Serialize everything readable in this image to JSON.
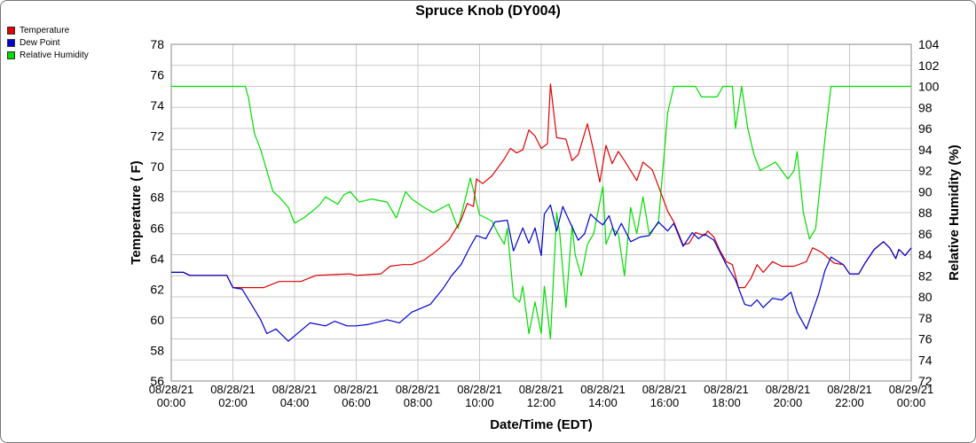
{
  "chart_data": {
    "type": "line",
    "title": "Spruce Knob (DY004)",
    "xlabel": "Date/Time (EDT)",
    "ylabel_left": "Temperature ( F)",
    "ylabel_right": "Relative Humidity (%)",
    "xlim_hours": [
      0,
      24
    ],
    "ylim_left": [
      56,
      78
    ],
    "ylim_right": [
      72,
      104
    ],
    "grid": true,
    "legend_position": "top-left",
    "x_ticks": [
      {
        "date": "08/28/21",
        "time": "00:00"
      },
      {
        "date": "08/28/21",
        "time": "02:00"
      },
      {
        "date": "08/28/21",
        "time": "04:00"
      },
      {
        "date": "08/28/21",
        "time": "06:00"
      },
      {
        "date": "08/28/21",
        "time": "08:00"
      },
      {
        "date": "08/28/21",
        "time": "10:00"
      },
      {
        "date": "08/28/21",
        "time": "12:00"
      },
      {
        "date": "08/28/21",
        "time": "14:00"
      },
      {
        "date": "08/28/21",
        "time": "16:00"
      },
      {
        "date": "08/28/21",
        "time": "18:00"
      },
      {
        "date": "08/28/21",
        "time": "20:00"
      },
      {
        "date": "08/28/21",
        "time": "22:00"
      },
      {
        "date": "08/29/21",
        "time": "00:00"
      }
    ],
    "y_ticks_left": [
      56,
      58,
      60,
      62,
      64,
      66,
      68,
      70,
      72,
      74,
      76,
      78
    ],
    "y_ticks_right": [
      72,
      74,
      76,
      78,
      80,
      82,
      84,
      86,
      88,
      90,
      92,
      94,
      96,
      98,
      100,
      102,
      104
    ],
    "series": [
      {
        "name": "Temperature",
        "color": "#e00000",
        "axis": "left",
        "points": [
          [
            "08/28/21 00:00",
            63.1
          ],
          [
            "08/28/21 00:24",
            63.1
          ],
          [
            "08/28/21 00:36",
            62.9
          ],
          [
            "08/28/21 01:48",
            62.9
          ],
          [
            "08/28/21 02:00",
            62.1
          ],
          [
            "08/28/21 03:00",
            62.1
          ],
          [
            "08/28/21 03:30",
            62.5
          ],
          [
            "08/28/21 04:12",
            62.5
          ],
          [
            "08/28/21 04:42",
            62.9
          ],
          [
            "08/28/21 05:48",
            63.0
          ],
          [
            "08/28/21 06:00",
            62.9
          ],
          [
            "08/28/21 06:48",
            63.0
          ],
          [
            "08/28/21 07:06",
            63.5
          ],
          [
            "08/28/21 07:30",
            63.6
          ],
          [
            "08/28/21 07:48",
            63.6
          ],
          [
            "08/28/21 08:12",
            63.9
          ],
          [
            "08/28/21 08:36",
            64.5
          ],
          [
            "08/28/21 09:00",
            65.2
          ],
          [
            "08/28/21 09:24",
            66.5
          ],
          [
            "08/28/21 09:36",
            67.6
          ],
          [
            "08/28/21 09:48",
            67.4
          ],
          [
            "08/28/21 09:54",
            69.2
          ],
          [
            "08/28/21 10:06",
            68.9
          ],
          [
            "08/28/21 10:24",
            69.4
          ],
          [
            "08/28/21 10:48",
            70.5
          ],
          [
            "08/28/21 11:00",
            71.2
          ],
          [
            "08/28/21 11:12",
            70.9
          ],
          [
            "08/28/21 11:24",
            71.1
          ],
          [
            "08/28/21 11:36",
            72.4
          ],
          [
            "08/28/21 11:48",
            72.0
          ],
          [
            "08/28/21 12:00",
            71.2
          ],
          [
            "08/28/21 12:12",
            71.5
          ],
          [
            "08/28/21 12:18",
            75.4
          ],
          [
            "08/28/21 12:30",
            71.9
          ],
          [
            "08/28/21 12:48",
            71.8
          ],
          [
            "08/28/21 13:00",
            70.4
          ],
          [
            "08/28/21 13:12",
            70.8
          ],
          [
            "08/28/21 13:30",
            72.8
          ],
          [
            "08/28/21 13:42",
            71.0
          ],
          [
            "08/28/21 13:54",
            69.0
          ],
          [
            "08/28/21 14:06",
            71.4
          ],
          [
            "08/28/21 14:18",
            70.2
          ],
          [
            "08/28/21 14:30",
            71.0
          ],
          [
            "08/28/21 14:42",
            70.4
          ],
          [
            "08/28/21 15:06",
            69.1
          ],
          [
            "08/28/21 15:18",
            70.3
          ],
          [
            "08/28/21 15:36",
            69.8
          ],
          [
            "08/28/21 15:54",
            68.2
          ],
          [
            "08/28/21 16:06",
            67.1
          ],
          [
            "08/28/21 16:18",
            66.4
          ],
          [
            "08/28/21 16:36",
            64.9
          ],
          [
            "08/28/21 16:48",
            65.0
          ],
          [
            "08/28/21 17:00",
            65.7
          ],
          [
            "08/28/21 17:18",
            65.5
          ],
          [
            "08/28/21 17:24",
            65.8
          ],
          [
            "08/28/21 17:36",
            65.4
          ],
          [
            "08/28/21 17:48",
            64.5
          ],
          [
            "08/28/21 18:00",
            63.8
          ],
          [
            "08/28/21 18:12",
            63.6
          ],
          [
            "08/28/21 18:24",
            62.1
          ],
          [
            "08/28/21 18:36",
            62.1
          ],
          [
            "08/28/21 18:48",
            62.7
          ],
          [
            "08/28/21 19:00",
            63.6
          ],
          [
            "08/28/21 19:12",
            63.1
          ],
          [
            "08/28/21 19:30",
            63.8
          ],
          [
            "08/28/21 19:48",
            63.5
          ],
          [
            "08/28/21 20:12",
            63.5
          ],
          [
            "08/28/21 20:36",
            63.8
          ],
          [
            "08/28/21 20:48",
            64.7
          ],
          [
            "08/28/21 21:06",
            64.4
          ],
          [
            "08/28/21 21:30",
            63.7
          ],
          [
            "08/28/21 21:48",
            63.6
          ],
          [
            "08/28/21 22:00",
            63.0
          ],
          [
            "08/28/21 22:18",
            63.0
          ],
          [
            "08/28/21 22:30",
            63.7
          ],
          [
            "08/28/21 22:48",
            64.6
          ],
          [
            "08/28/21 23:06",
            65.1
          ],
          [
            "08/28/21 23:18",
            64.7
          ],
          [
            "08/28/21 23:30",
            64.0
          ],
          [
            "08/28/21 23:36",
            64.6
          ],
          [
            "08/28/21 23:48",
            64.2
          ],
          [
            "08/29/21 00:00",
            64.7
          ]
        ]
      },
      {
        "name": "Dew Point",
        "color": "#0000d0",
        "axis": "left",
        "points": [
          [
            "08/28/21 00:00",
            63.1
          ],
          [
            "08/28/21 00:24",
            63.1
          ],
          [
            "08/28/21 00:36",
            62.9
          ],
          [
            "08/28/21 01:48",
            62.9
          ],
          [
            "08/28/21 02:00",
            62.1
          ],
          [
            "08/28/21 02:18",
            62.0
          ],
          [
            "08/28/21 02:36",
            61.0
          ],
          [
            "08/28/21 02:54",
            60.0
          ],
          [
            "08/28/21 03:06",
            59.1
          ],
          [
            "08/28/21 03:24",
            59.4
          ],
          [
            "08/28/21 03:48",
            58.6
          ],
          [
            "08/28/21 04:30",
            59.8
          ],
          [
            "08/28/21 05:00",
            59.6
          ],
          [
            "08/28/21 05:18",
            59.9
          ],
          [
            "08/28/21 05:42",
            59.6
          ],
          [
            "08/28/21 06:00",
            59.6
          ],
          [
            "08/28/21 06:24",
            59.7
          ],
          [
            "08/28/21 07:00",
            60.0
          ],
          [
            "08/28/21 07:24",
            59.8
          ],
          [
            "08/28/21 07:48",
            60.5
          ],
          [
            "08/28/21 08:24",
            61.0
          ],
          [
            "08/28/21 08:48",
            62.0
          ],
          [
            "08/28/21 09:06",
            62.9
          ],
          [
            "08/28/21 09:24",
            63.6
          ],
          [
            "08/28/21 09:42",
            64.8
          ],
          [
            "08/28/21 09:54",
            65.5
          ],
          [
            "08/28/21 10:12",
            65.3
          ],
          [
            "08/28/21 10:30",
            66.4
          ],
          [
            "08/28/21 10:54",
            66.5
          ],
          [
            "08/28/21 11:06",
            64.5
          ],
          [
            "08/28/21 11:24",
            66.0
          ],
          [
            "08/28/21 11:36",
            65.0
          ],
          [
            "08/28/21 11:48",
            66.0
          ],
          [
            "08/28/21 12:00",
            64.2
          ],
          [
            "08/28/21 12:06",
            66.9
          ],
          [
            "08/28/21 12:18",
            67.5
          ],
          [
            "08/28/21 12:30",
            65.8
          ],
          [
            "08/28/21 12:42",
            67.4
          ],
          [
            "08/28/21 12:54",
            66.5
          ],
          [
            "08/28/21 13:12",
            65.2
          ],
          [
            "08/28/21 13:24",
            65.6
          ],
          [
            "08/28/21 13:36",
            66.9
          ],
          [
            "08/28/21 13:48",
            66.5
          ],
          [
            "08/28/21 14:00",
            66.2
          ],
          [
            "08/28/21 14:12",
            66.8
          ],
          [
            "08/28/21 14:24",
            65.5
          ],
          [
            "08/28/21 14:36",
            66.3
          ],
          [
            "08/28/21 14:54",
            65.1
          ],
          [
            "08/28/21 15:12",
            65.4
          ],
          [
            "08/28/21 15:30",
            65.5
          ],
          [
            "08/28/21 15:48",
            66.4
          ],
          [
            "08/28/21 16:06",
            65.8
          ],
          [
            "08/28/21 16:18",
            66.3
          ],
          [
            "08/28/21 16:36",
            64.8
          ],
          [
            "08/28/21 16:54",
            65.7
          ],
          [
            "08/28/21 17:06",
            65.3
          ],
          [
            "08/28/21 17:18",
            65.6
          ],
          [
            "08/28/21 17:36",
            65.2
          ],
          [
            "08/28/21 18:00",
            63.6
          ],
          [
            "08/28/21 18:18",
            62.6
          ],
          [
            "08/28/21 18:36",
            61.0
          ],
          [
            "08/28/21 18:48",
            60.9
          ],
          [
            "08/28/21 19:00",
            61.3
          ],
          [
            "08/28/21 19:12",
            60.8
          ],
          [
            "08/28/21 19:30",
            61.4
          ],
          [
            "08/28/21 19:48",
            61.3
          ],
          [
            "08/28/21 20:06",
            61.8
          ],
          [
            "08/28/21 20:18",
            60.5
          ],
          [
            "08/28/21 20:36",
            59.4
          ],
          [
            "08/28/21 21:00",
            61.7
          ],
          [
            "08/28/21 21:12",
            63.2
          ],
          [
            "08/28/21 21:24",
            64.1
          ],
          [
            "08/28/21 21:48",
            63.6
          ],
          [
            "08/28/21 22:00",
            63.0
          ],
          [
            "08/28/21 22:18",
            63.0
          ],
          [
            "08/28/21 22:30",
            63.7
          ],
          [
            "08/28/21 22:48",
            64.6
          ],
          [
            "08/28/21 23:06",
            65.1
          ],
          [
            "08/28/21 23:18",
            64.7
          ],
          [
            "08/28/21 23:30",
            64.0
          ],
          [
            "08/28/21 23:36",
            64.6
          ],
          [
            "08/28/21 23:48",
            64.2
          ],
          [
            "08/29/21 00:00",
            64.7
          ]
        ]
      },
      {
        "name": "Relative Humidity",
        "color": "#00dd00",
        "axis": "right",
        "points": [
          [
            "08/28/21 00:00",
            100.0
          ],
          [
            "08/28/21 02:24",
            100.0
          ],
          [
            "08/28/21 02:30",
            99.0
          ],
          [
            "08/28/21 02:42",
            95.5
          ],
          [
            "08/28/21 02:54",
            94.0
          ],
          [
            "08/28/21 03:06",
            92.0
          ],
          [
            "08/28/21 03:18",
            90.0
          ],
          [
            "08/28/21 03:30",
            89.5
          ],
          [
            "08/28/21 03:48",
            88.5
          ],
          [
            "08/28/21 04:00",
            87.0
          ],
          [
            "08/28/21 04:18",
            87.5
          ],
          [
            "08/28/21 04:36",
            88.2
          ],
          [
            "08/28/21 04:48",
            88.7
          ],
          [
            "08/28/21 05:00",
            89.5
          ],
          [
            "08/28/21 05:24",
            88.8
          ],
          [
            "08/28/21 05:36",
            89.7
          ],
          [
            "08/28/21 05:48",
            90.0
          ],
          [
            "08/28/21 06:06",
            89.0
          ],
          [
            "08/28/21 06:30",
            89.3
          ],
          [
            "08/28/21 07:00",
            89.0
          ],
          [
            "08/28/21 07:18",
            87.5
          ],
          [
            "08/28/21 07:36",
            90.0
          ],
          [
            "08/28/21 07:48",
            89.3
          ],
          [
            "08/28/21 08:12",
            88.5
          ],
          [
            "08/28/21 08:30",
            88.0
          ],
          [
            "08/28/21 09:00",
            88.8
          ],
          [
            "08/28/21 09:18",
            86.5
          ],
          [
            "08/28/21 09:42",
            91.3
          ],
          [
            "08/28/21 10:00",
            87.8
          ],
          [
            "08/28/21 10:24",
            87.2
          ],
          [
            "08/28/21 10:36",
            86.0
          ],
          [
            "08/28/21 10:48",
            85.0
          ],
          [
            "08/28/21 10:54",
            86.5
          ],
          [
            "08/28/21 11:06",
            80.0
          ],
          [
            "08/28/21 11:18",
            79.5
          ],
          [
            "08/28/21 11:24",
            81.0
          ],
          [
            "08/28/21 11:36",
            76.5
          ],
          [
            "08/28/21 11:48",
            79.5
          ],
          [
            "08/28/21 12:00",
            76.5
          ],
          [
            "08/28/21 12:06",
            81.0
          ],
          [
            "08/28/21 12:18",
            76.0
          ],
          [
            "08/28/21 12:30",
            88.0
          ],
          [
            "08/28/21 12:36",
            86.0
          ],
          [
            "08/28/21 12:48",
            79.0
          ],
          [
            "08/28/21 13:00",
            86.8
          ],
          [
            "08/28/21 13:06",
            84.0
          ],
          [
            "08/28/21 13:18",
            82.0
          ],
          [
            "08/28/21 13:30",
            85.0
          ],
          [
            "08/28/21 13:42",
            86.0
          ],
          [
            "08/28/21 14:00",
            90.5
          ],
          [
            "08/28/21 14:06",
            85.0
          ],
          [
            "08/28/21 14:18",
            86.5
          ],
          [
            "08/28/21 14:30",
            86.0
          ],
          [
            "08/28/21 14:42",
            82.0
          ],
          [
            "08/28/21 14:54",
            88.5
          ],
          [
            "08/28/21 15:06",
            86.0
          ],
          [
            "08/28/21 15:18",
            89.5
          ],
          [
            "08/28/21 15:30",
            86.0
          ],
          [
            "08/28/21 15:48",
            87.0
          ],
          [
            "08/28/21 16:06",
            97.5
          ],
          [
            "08/28/21 16:18",
            100.0
          ],
          [
            "08/28/21 17:00",
            100.0
          ],
          [
            "08/28/21 17:12",
            99.0
          ],
          [
            "08/28/21 17:42",
            99.0
          ],
          [
            "08/28/21 17:54",
            100.0
          ],
          [
            "08/28/21 18:12",
            100.0
          ],
          [
            "08/28/21 18:18",
            96.0
          ],
          [
            "08/28/21 18:30",
            100.0
          ],
          [
            "08/28/21 18:42",
            96.0
          ],
          [
            "08/28/21 18:54",
            93.5
          ],
          [
            "08/28/21 19:06",
            92.0
          ],
          [
            "08/28/21 19:36",
            92.8
          ],
          [
            "08/28/21 20:00",
            91.2
          ],
          [
            "08/28/21 20:12",
            92.0
          ],
          [
            "08/28/21 20:18",
            93.8
          ],
          [
            "08/28/21 20:30",
            88.0
          ],
          [
            "08/28/21 20:42",
            85.5
          ],
          [
            "08/28/21 20:54",
            86.5
          ],
          [
            "08/28/21 21:12",
            95.0
          ],
          [
            "08/28/21 21:24",
            100.0
          ],
          [
            "08/29/21 00:00",
            100.0
          ]
        ]
      }
    ]
  }
}
